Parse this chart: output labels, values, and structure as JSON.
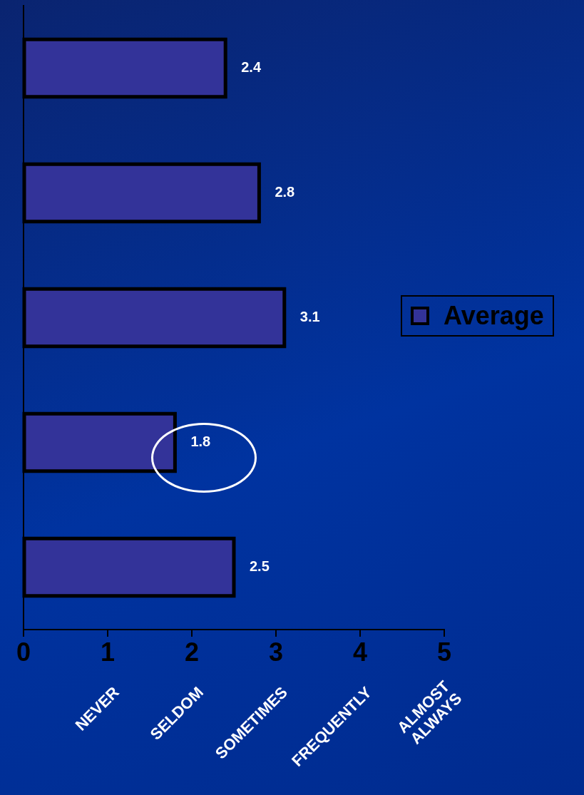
{
  "chart_data": {
    "type": "bar",
    "orientation": "horizontal",
    "categories": [
      null,
      null,
      null,
      null,
      null
    ],
    "series": [
      {
        "name": "Average",
        "color": "#333399",
        "values": [
          2.4,
          2.8,
          3.1,
          1.8,
          2.5
        ]
      }
    ],
    "xlim": [
      0,
      5
    ],
    "xticks": [
      0,
      1,
      2,
      3,
      4,
      5
    ],
    "annotations": [
      "NEVER",
      "SELDOM",
      "SOMETIMES",
      "FREQUENTLY",
      "ALMOST ALWAYS"
    ],
    "data_labels": true,
    "legend": "right",
    "grid": false
  }
}
